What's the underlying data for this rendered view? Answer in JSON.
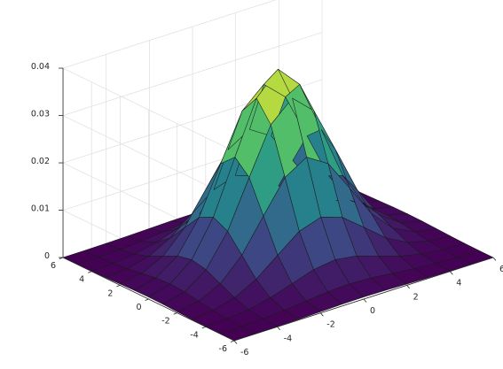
{
  "chart_data": {
    "type": "surface",
    "title": "",
    "xlabel": "",
    "ylabel": "",
    "zlabel": "",
    "colormap": "viridis",
    "colormap_stops": [
      "#440154",
      "#3b528b",
      "#21918c",
      "#5ec962",
      "#fde725"
    ],
    "grid": true,
    "view": "3d-perspective",
    "xlim": [
      -6,
      6
    ],
    "ylim": [
      -6,
      6
    ],
    "zlim": [
      0,
      0.04
    ],
    "x_ticks": [
      "-6",
      "-4",
      "-2",
      "0",
      "2",
      "4",
      "6"
    ],
    "y_ticks": [
      "-6",
      "-4",
      "-2",
      "0",
      "2",
      "4",
      "6"
    ],
    "z_ticks": [
      "0",
      "0.01",
      "0.02",
      "0.03",
      "0.04"
    ],
    "x": [
      -6,
      -5,
      -4,
      -3,
      -2,
      -1,
      0,
      1,
      2,
      3,
      4,
      5,
      6
    ],
    "y": [
      -6,
      -5,
      -4,
      -3,
      -2,
      -1,
      0,
      1,
      2,
      3,
      4,
      5,
      6
    ],
    "z_function": "bivariate normal density, mean [0,0], sigma_x = sigma_y = 2",
    "z_peak": 0.0398
  }
}
